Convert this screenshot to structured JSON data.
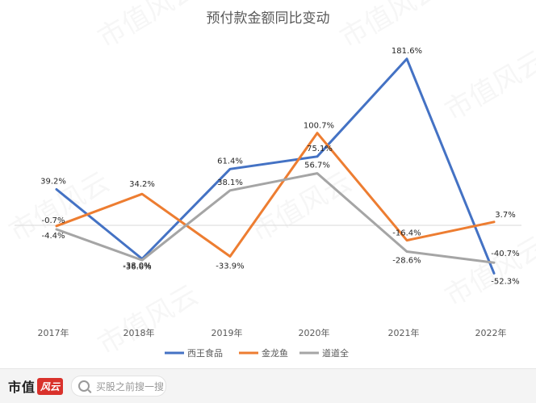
{
  "chart_data": {
    "type": "line",
    "title": "预付款金额同比变动",
    "categories": [
      "2017年",
      "2018年",
      "2019年",
      "2020年",
      "2021年",
      "2022年"
    ],
    "unit": "%",
    "series": [
      {
        "name": "西王食品",
        "color": "#4472c4",
        "values": [
          39.2,
          -36.6,
          61.4,
          75.1,
          181.6,
          -52.3
        ],
        "labels": [
          "39.2%",
          "-36.6%",
          "61.4%",
          "75.1%",
          "181.6%",
          "-52.3%"
        ]
      },
      {
        "name": "金龙鱼",
        "color": "#ed7d31",
        "values": [
          -0.7,
          34.2,
          -33.9,
          100.7,
          -16.4,
          3.7
        ],
        "labels": [
          "-0.7%",
          "34.2%",
          "-33.9%",
          "100.7%",
          "-16.4%",
          "3.7%"
        ]
      },
      {
        "name": "道道全",
        "color": "#a5a5a5",
        "values": [
          -4.4,
          -38.0,
          38.1,
          56.7,
          -28.6,
          -40.7
        ],
        "labels": [
          "-4.4%",
          "-38.0%",
          "38.1%",
          "56.7%",
          "-28.6%",
          "-40.7%"
        ]
      }
    ],
    "legend_position": "bottom",
    "grid": false
  },
  "watermark": {
    "text": "市值风云"
  },
  "footer": {
    "brand": "市值",
    "brand_badge": "风云",
    "search_placeholder": "买股之前搜一搜"
  }
}
